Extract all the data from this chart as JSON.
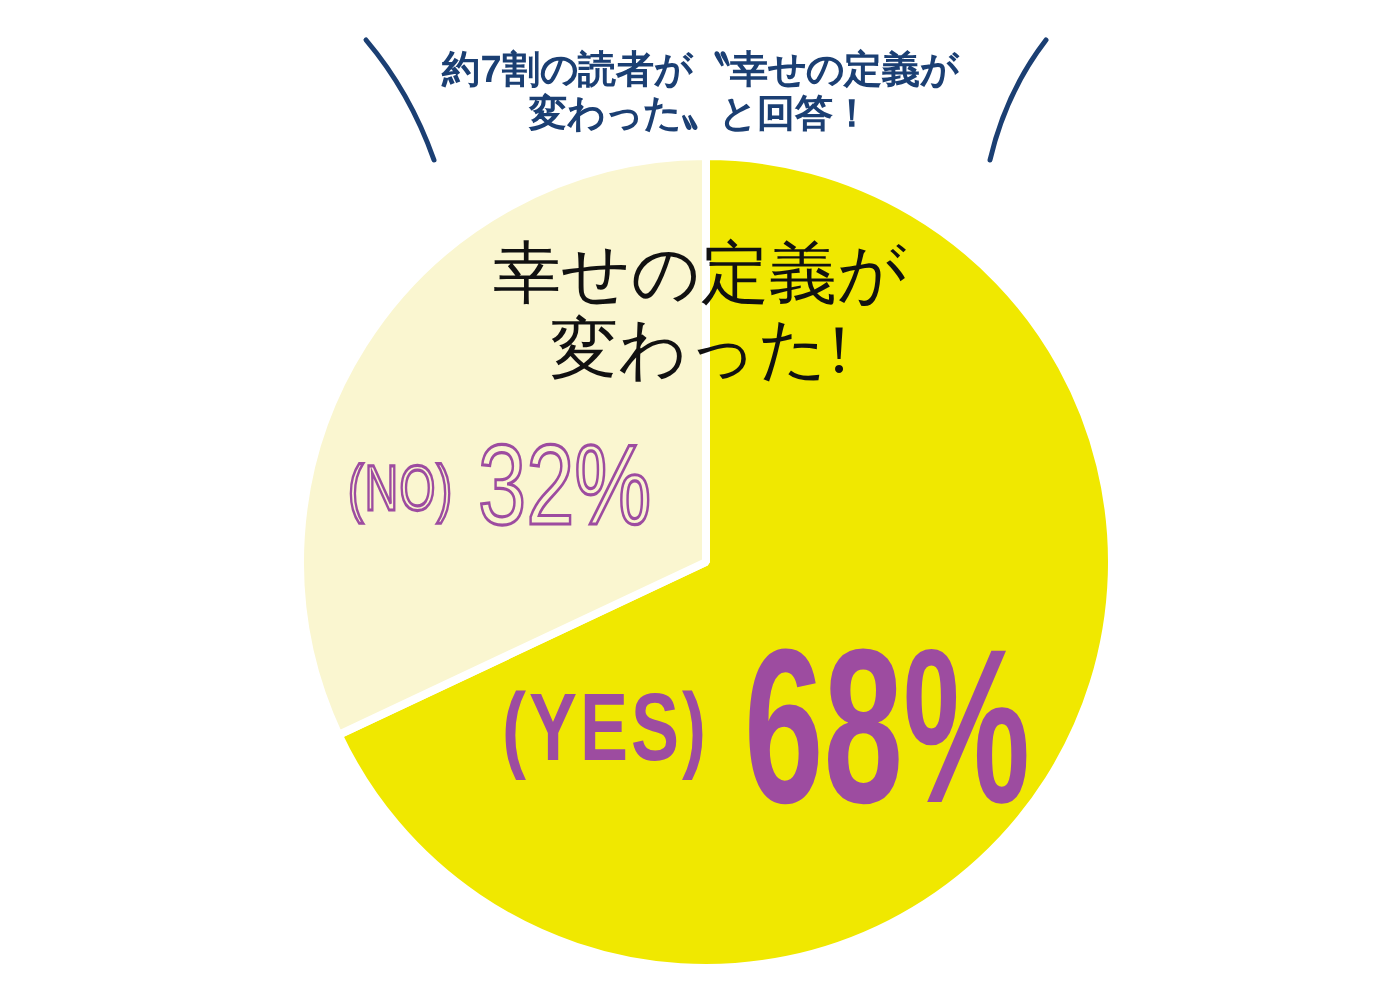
{
  "chart_data": {
    "type": "pie",
    "title": "約7割の読者が〝幸せの定義が変わった〟と回答！",
    "categories": [
      "(YES)",
      "(NO)"
    ],
    "values": [
      68,
      32
    ],
    "colors": [
      "#f0e800",
      "#faf6d0"
    ],
    "value_labels": [
      "68%",
      "32%"
    ],
    "annotations": [
      "幸せの定義が変わった!"
    ]
  }
}
